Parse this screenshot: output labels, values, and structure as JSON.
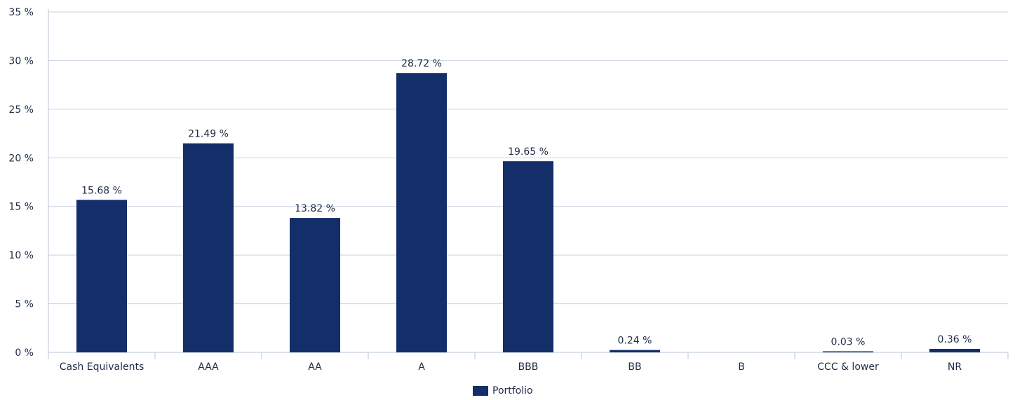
{
  "chart_data": {
    "type": "bar",
    "categories": [
      "Cash Equivalents",
      "AAA",
      "AA",
      "A",
      "BBB",
      "BB",
      "B",
      "CCC & lower",
      "NR"
    ],
    "series": [
      {
        "name": "Portfolio",
        "values": [
          15.68,
          21.49,
          13.82,
          28.72,
          19.65,
          0.24,
          0,
          0.03,
          0.36
        ],
        "labels": [
          "15.68 %",
          "21.49 %",
          "13.82 %",
          "28.72 %",
          "19.65 %",
          "0.24 %",
          "",
          "0.03 %",
          "0.36 %"
        ]
      }
    ],
    "ylim": [
      0,
      35
    ],
    "yticks": [
      0,
      5,
      10,
      15,
      20,
      25,
      30,
      35
    ],
    "ytick_labels": [
      "0 %",
      "5 %",
      "10 %",
      "15 %",
      "20 %",
      "25 %",
      "30 %",
      "35 %"
    ],
    "grid": true,
    "legend_position": "bottom-center",
    "colors": {
      "bar": "#132e69",
      "grid": "#c9d3e0",
      "axis": "#b8c4d6"
    }
  },
  "legend": {
    "label": "Portfolio"
  }
}
